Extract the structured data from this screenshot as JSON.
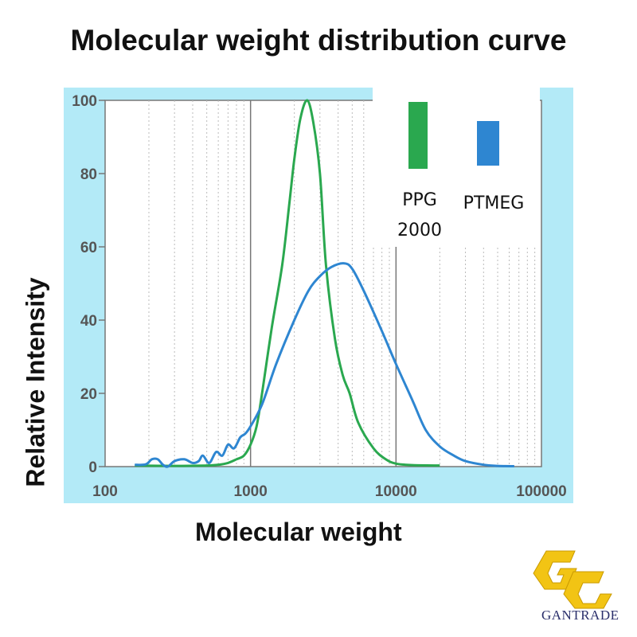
{
  "chart_data": {
    "type": "line",
    "title": "Molecular weight distribution curve",
    "xlabel": "Molecular weight",
    "ylabel": "Relative Intensity",
    "xscale": "log",
    "xlim": [
      100,
      100000
    ],
    "ylim": [
      0,
      100
    ],
    "x_ticks": [
      "100",
      "1000",
      "10000",
      "100000"
    ],
    "y_ticks": [
      "0",
      "20",
      "40",
      "60",
      "80",
      "100"
    ],
    "grid": "vertical major solid, minor dotted",
    "background_color": "#b3eaf7",
    "legend": {
      "placement": "top-right",
      "style": "vertical bars"
    },
    "series": [
      {
        "name": "PPG 2000",
        "color": "#2aa84f",
        "points": [
          [
            160,
            0.3
          ],
          [
            300,
            0.2
          ],
          [
            500,
            0.3
          ],
          [
            600,
            0.5
          ],
          [
            700,
            1
          ],
          [
            800,
            2
          ],
          [
            900,
            3
          ],
          [
            1000,
            6
          ],
          [
            1100,
            11
          ],
          [
            1200,
            20
          ],
          [
            1400,
            38
          ],
          [
            1650,
            55
          ],
          [
            1850,
            72
          ],
          [
            2000,
            84
          ],
          [
            2200,
            95
          ],
          [
            2450,
            100
          ],
          [
            2700,
            94
          ],
          [
            3000,
            80
          ],
          [
            3300,
            55
          ],
          [
            3800,
            35
          ],
          [
            4300,
            25
          ],
          [
            4800,
            20
          ],
          [
            5500,
            12
          ],
          [
            7000,
            5
          ],
          [
            8500,
            2
          ],
          [
            10000,
            0.8
          ],
          [
            13000,
            0.4
          ],
          [
            20000,
            0.3
          ]
        ]
      },
      {
        "name": "PTMEG",
        "color": "#2e86d1",
        "points": [
          [
            160,
            0.5
          ],
          [
            190,
            0.6
          ],
          [
            210,
            2
          ],
          [
            230,
            2
          ],
          [
            250,
            0.5
          ],
          [
            270,
            0
          ],
          [
            300,
            1.5
          ],
          [
            350,
            2
          ],
          [
            400,
            1
          ],
          [
            440,
            1.5
          ],
          [
            470,
            3
          ],
          [
            520,
            1
          ],
          [
            580,
            4
          ],
          [
            640,
            3
          ],
          [
            700,
            6
          ],
          [
            770,
            5
          ],
          [
            850,
            8
          ],
          [
            920,
            9
          ],
          [
            1000,
            11
          ],
          [
            1200,
            17
          ],
          [
            1500,
            28
          ],
          [
            2000,
            40
          ],
          [
            2500,
            48
          ],
          [
            3000,
            52
          ],
          [
            3600,
            54.5
          ],
          [
            4400,
            55.5
          ],
          [
            5000,
            54
          ],
          [
            6000,
            48
          ],
          [
            8000,
            37
          ],
          [
            10000,
            28
          ],
          [
            13000,
            18
          ],
          [
            16000,
            10
          ],
          [
            20000,
            5.5
          ],
          [
            25000,
            3
          ],
          [
            30000,
            1.5
          ],
          [
            40000,
            0.5
          ],
          [
            50000,
            0.2
          ],
          [
            65000,
            0.1
          ]
        ]
      }
    ]
  },
  "logo": {
    "text": "GANTRADE"
  }
}
